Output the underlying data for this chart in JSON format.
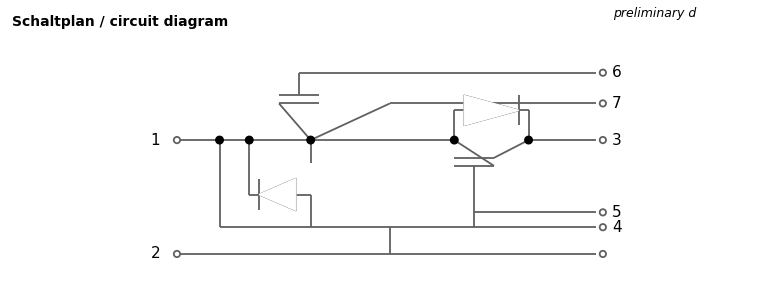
{
  "title": "Schaltplan / circuit diagram",
  "preliminary_text": "preliminary d",
  "line_color": "#606060",
  "text_color": "#000000",
  "bg_color": "#ffffff",
  "figsize": [
    7.61,
    2.92
  ],
  "dpi": 100
}
